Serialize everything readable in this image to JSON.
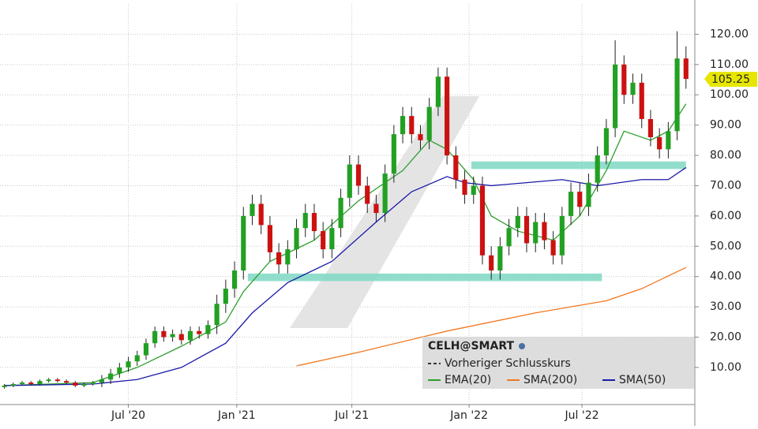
{
  "chart_data": {
    "type": "candlestick",
    "title": "CELH@SMART",
    "legend_prev_close": "Vorheriger Schlusskurs",
    "x": [
      0,
      2,
      4,
      6,
      8,
      10,
      12,
      14,
      16,
      18,
      20,
      22,
      24,
      26,
      28,
      30,
      32,
      34,
      36,
      38,
      40,
      42,
      44,
      46,
      48,
      50,
      52,
      54,
      56,
      58,
      60,
      62,
      64,
      66,
      68,
      70,
      72,
      74,
      76,
      78,
      80,
      82,
      84,
      86,
      88,
      90,
      92,
      94,
      96,
      98,
      100,
      102,
      104,
      106,
      108,
      110,
      112,
      114,
      116,
      118,
      120,
      122,
      124,
      126,
      128,
      130,
      132,
      134,
      136,
      138,
      140,
      142,
      144,
      146,
      148,
      150,
      152,
      154
    ],
    "open": [
      3.5,
      4,
      4.5,
      5,
      4.5,
      5.5,
      6,
      5.5,
      5,
      4,
      4.5,
      5,
      6,
      8,
      10,
      12,
      14,
      18,
      22,
      20,
      21,
      19,
      22,
      21,
      24,
      31,
      36,
      42,
      60,
      64,
      57,
      48,
      44,
      49,
      56,
      61,
      55,
      49,
      56,
      66,
      77,
      70,
      64,
      61,
      74,
      87,
      93,
      87,
      85,
      96,
      106,
      80,
      72,
      67,
      70,
      47,
      42,
      50,
      56,
      60,
      51,
      58,
      52,
      47,
      60,
      68,
      63,
      71,
      80,
      89,
      110,
      100,
      104,
      92,
      86,
      82,
      88,
      112
    ],
    "high": [
      4.5,
      5,
      5.5,
      5.5,
      6,
      6.5,
      6.5,
      6,
      5.5,
      5,
      5.5,
      7.5,
      9.5,
      11.5,
      13.5,
      15.5,
      19.5,
      23.5,
      23.5,
      22.5,
      22.5,
      23.5,
      23.5,
      25.5,
      34,
      39,
      45,
      63,
      67,
      67,
      60,
      51,
      52,
      59,
      64,
      64,
      58,
      59,
      69,
      80,
      80,
      73,
      67,
      77,
      90,
      96,
      96,
      90,
      99,
      109,
      109,
      83,
      75,
      73,
      73,
      50,
      53,
      59,
      63,
      63,
      61,
      61,
      55,
      63,
      71,
      71,
      74,
      83,
      92,
      118,
      113,
      107,
      107,
      95,
      89,
      91,
      121,
      116
    ],
    "low": [
      3,
      3.5,
      4,
      4,
      4,
      5,
      5,
      4.5,
      3.5,
      3.5,
      4,
      3.5,
      4.5,
      6.5,
      8.5,
      10.5,
      12.5,
      16.5,
      18.5,
      18.5,
      17.5,
      17.5,
      19.5,
      19.5,
      21,
      28,
      33,
      39,
      57,
      54,
      45,
      41,
      41,
      46,
      53,
      52,
      46,
      46,
      53,
      63,
      67,
      61,
      58,
      58,
      71,
      84,
      84,
      82,
      82,
      93,
      77,
      69,
      64,
      64,
      44,
      39,
      39,
      47,
      53,
      48,
      48,
      49,
      44,
      44,
      57,
      60,
      60,
      68,
      77,
      86,
      97,
      97,
      89,
      83,
      79,
      79,
      85,
      102
    ],
    "close": [
      4,
      4.5,
      5,
      4.5,
      5.5,
      6,
      5.5,
      5,
      4,
      4.5,
      5,
      6,
      8,
      10,
      12,
      14,
      18,
      22,
      20,
      21,
      19,
      22,
      21,
      24,
      31,
      36,
      42,
      60,
      64,
      57,
      48,
      44,
      49,
      56,
      61,
      55,
      49,
      56,
      66,
      77,
      70,
      64,
      61,
      74,
      87,
      93,
      87,
      85,
      96,
      106,
      80,
      72,
      67,
      70,
      47,
      42,
      50,
      56,
      60,
      51,
      58,
      52,
      47,
      60,
      68,
      63,
      71,
      80,
      89,
      110,
      100,
      104,
      92,
      86,
      82,
      88,
      112,
      105.25
    ],
    "up_color": "#22a022",
    "down_color": "#cc1111",
    "last_price": 105.25,
    "last_price_label": "105.25",
    "lines": [
      {
        "name": "EMA(20)",
        "color": "#2e9e2e",
        "x": [
          0,
          20,
          30,
          40,
          50,
          54,
          60,
          70,
          80,
          90,
          96,
          100,
          106,
          110,
          116,
          124,
          130,
          136,
          140,
          146,
          150,
          154
        ],
        "values": [
          4,
          5,
          10,
          17,
          25,
          35,
          45,
          52,
          65,
          75,
          85,
          82,
          72,
          60,
          55,
          52,
          60,
          75,
          88,
          85,
          88,
          97
        ]
      },
      {
        "name": "SMA(200)",
        "color": "#f07820",
        "x": [
          66,
          80,
          100,
          120,
          136,
          144,
          154
        ],
        "values": [
          10.5,
          15,
          22,
          28,
          32,
          36,
          43
        ]
      },
      {
        "name": "SMA(50)",
        "color": "#1a1aa8",
        "x": [
          0,
          20,
          30,
          40,
          50,
          56,
          64,
          74,
          84,
          92,
          100,
          104,
          110,
          118,
          126,
          134,
          144,
          150,
          154
        ],
        "values": [
          4,
          4.5,
          6,
          10,
          18,
          28,
          38,
          45,
          58,
          68,
          73,
          71,
          70,
          71,
          72,
          70,
          72,
          72,
          76
        ]
      }
    ],
    "zones": [
      {
        "x": [
          105.5,
          154
        ],
        "y": [
          75.5,
          78
        ]
      },
      {
        "x": [
          55,
          135
        ],
        "y": [
          38.5,
          41
        ]
      }
    ],
    "zone_color": "#7fd8c4",
    "xlim": [
      -1,
      156
    ],
    "ylim": [
      -2,
      130
    ],
    "xticks": [
      {
        "value": 28,
        "label": "Jul '20"
      },
      {
        "value": 52.5,
        "label": "Jan '21"
      },
      {
        "value": 78.5,
        "label": "Jul '21"
      },
      {
        "value": 105,
        "label": "Jan '22"
      },
      {
        "value": 130.5,
        "label": "Jul '22"
      }
    ],
    "yticks": [
      {
        "value": 10,
        "label": "10.00"
      },
      {
        "value": 20,
        "label": "20.00"
      },
      {
        "value": 30,
        "label": "30.00"
      },
      {
        "value": 40,
        "label": "40.00"
      },
      {
        "value": 50,
        "label": "50.00"
      },
      {
        "value": 60,
        "label": "60.00"
      },
      {
        "value": 70,
        "label": "70.00"
      },
      {
        "value": 80,
        "label": "80.00"
      },
      {
        "value": 90,
        "label": "90.00"
      },
      {
        "value": 100,
        "label": "100.00"
      },
      {
        "value": 110,
        "label": "110.00"
      },
      {
        "value": 120,
        "label": "120.00"
      }
    ],
    "grid": true
  }
}
